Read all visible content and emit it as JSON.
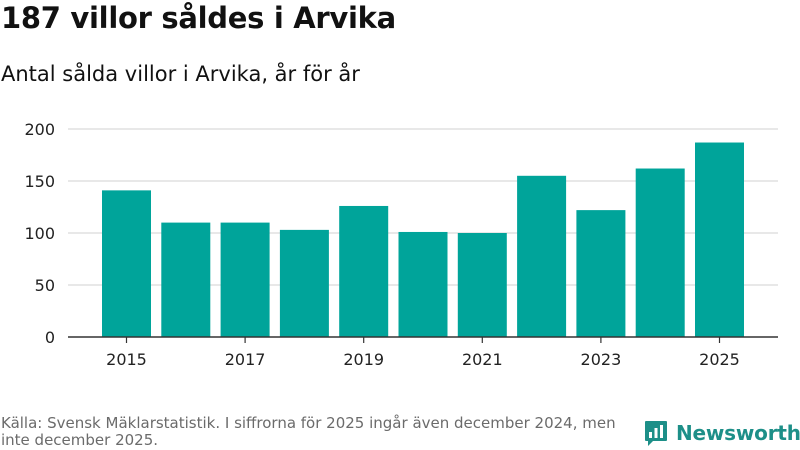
{
  "header": {
    "title": "187 villor såldes i Arvika",
    "subtitle": "Antal sålda villor i Arvika, år för år"
  },
  "footer": {
    "source": "Källa: Svensk Mäklarstatistik. I siffrorna för 2025 ingår även december 2024, men inte december 2025."
  },
  "brand": {
    "name": "Newsworthy",
    "icon": "newsworthy-logo-icon",
    "color": "#1d8f88"
  },
  "chart_data": {
    "type": "bar",
    "categories": [
      "2015",
      "2016",
      "2017",
      "2018",
      "2019",
      "2020",
      "2021",
      "2022",
      "2023",
      "2024",
      "2025"
    ],
    "values": [
      141,
      110,
      110,
      103,
      126,
      101,
      100,
      155,
      122,
      162,
      187
    ],
    "x_tick_labels": [
      "2015",
      "2017",
      "2019",
      "2021",
      "2023",
      "2025"
    ],
    "y_ticks": [
      0,
      50,
      100,
      150,
      200
    ],
    "ylim": [
      0,
      200
    ],
    "grid": true,
    "bar_color": "#00a49a",
    "grid_color": "#d9d9d9",
    "axis_color": "#333333"
  }
}
